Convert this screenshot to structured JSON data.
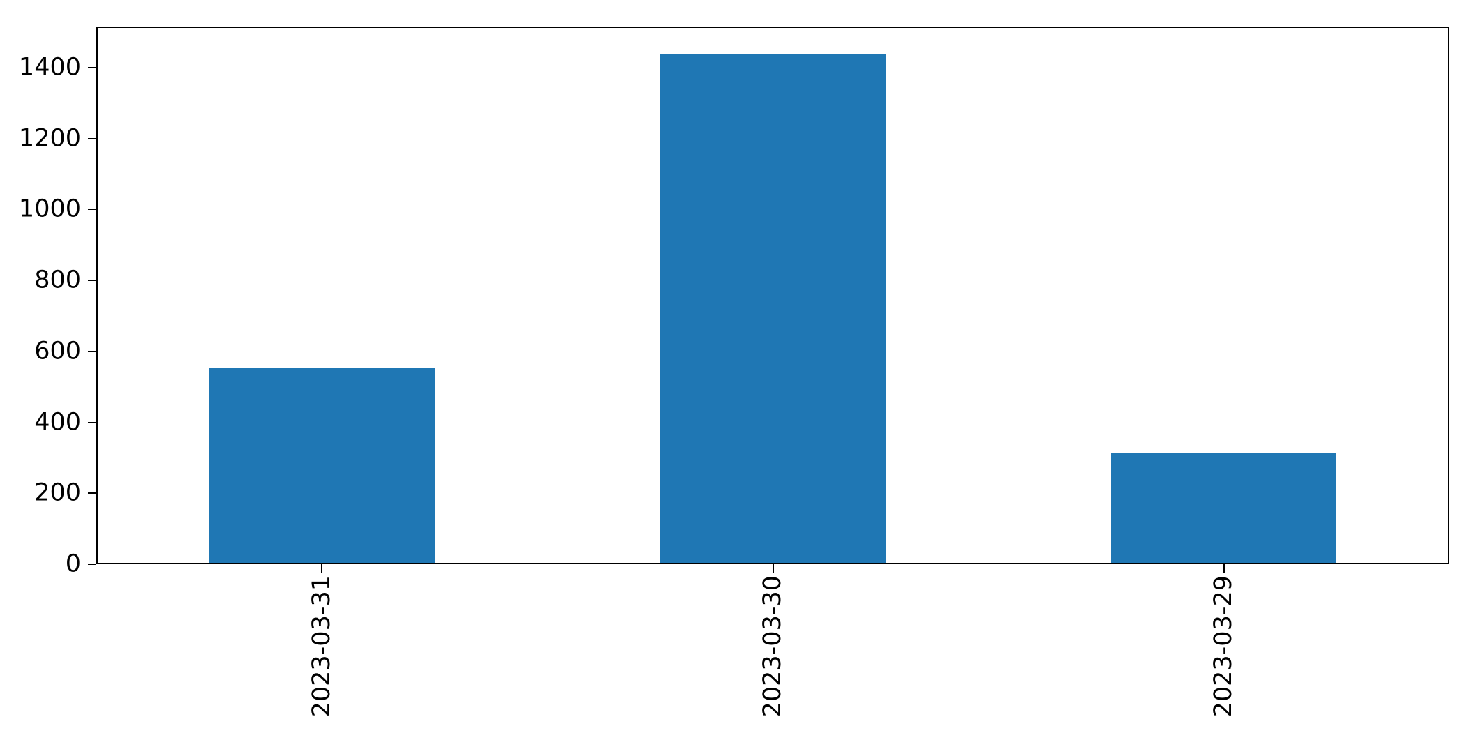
{
  "figure": {
    "background": "#ffffff"
  },
  "chart_data": {
    "type": "bar",
    "categories": [
      "2023-03-31",
      "2023-03-30",
      "2023-03-29"
    ],
    "values": [
      555,
      1440,
      315
    ],
    "title": "",
    "xlabel": "",
    "ylabel": "",
    "ylim": [
      0,
      1516
    ],
    "yticks": [
      0,
      200,
      400,
      600,
      800,
      1000,
      1200,
      1400
    ],
    "bar_color": "#1f77b4",
    "bar_relative_width": 0.5,
    "axis_color": "#000000",
    "tick_label_color": "#000000",
    "x_tick_label_rotation_deg": 90,
    "grid": false,
    "legend": "none"
  }
}
